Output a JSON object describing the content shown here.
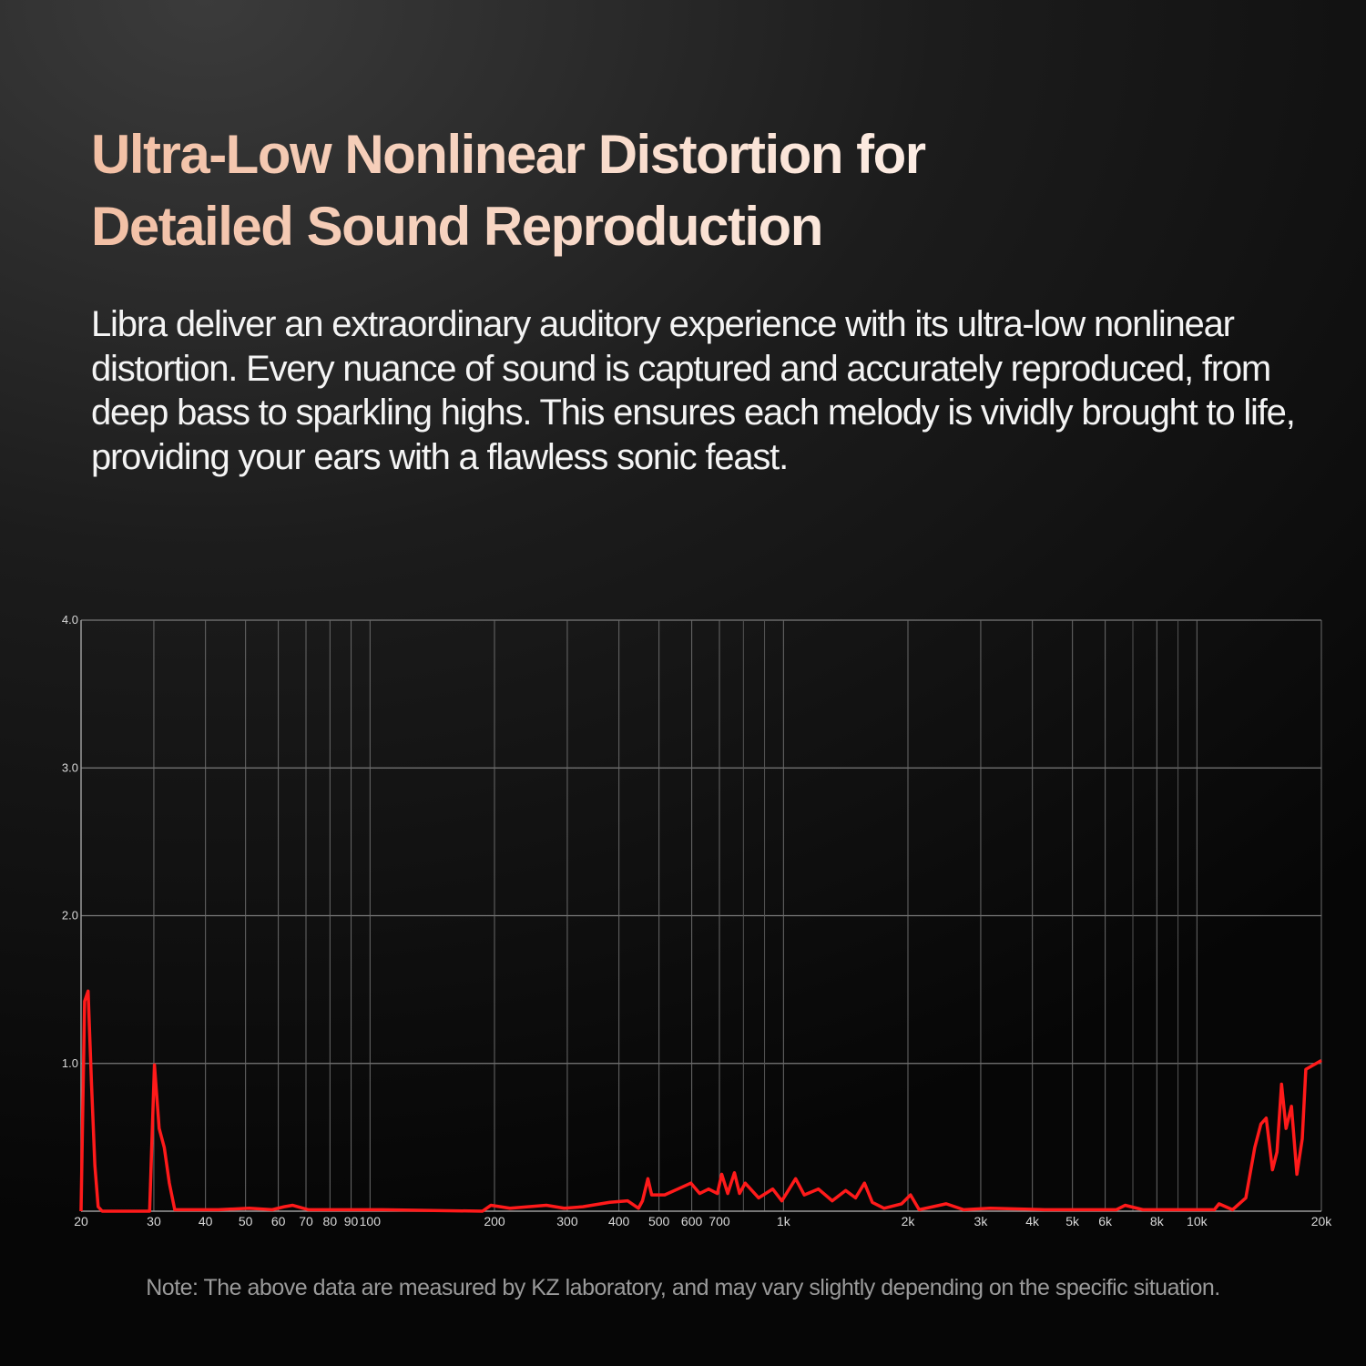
{
  "header": {
    "title_lines": [
      "Ultra-Low Nonlinear Distortion for",
      "Detailed Sound Reproduction"
    ],
    "description": "Libra deliver an extraordinary auditory experience with its ultra-low nonlinear distortion. Every nuance of sound is captured and accurately reproduced, from deep bass to sparkling highs. This ensures each melody is vividly brought to life, providing your ears with a flawless sonic feast."
  },
  "chart_data": {
    "type": "line",
    "xscale": "log",
    "grid": true,
    "xlim": [
      20,
      20000
    ],
    "ylim": [
      0,
      4
    ],
    "yticks": [
      {
        "value": 1,
        "label": "1.0"
      },
      {
        "value": 2,
        "label": "2.0"
      },
      {
        "value": 3,
        "label": "3.0"
      },
      {
        "value": 4,
        "label": "4.0"
      }
    ],
    "xticks": [
      20,
      30,
      40,
      50,
      60,
      70,
      80,
      90,
      100,
      200,
      300,
      400,
      500,
      600,
      700,
      {
        "value": 1000,
        "label": "1k"
      },
      {
        "value": 2000,
        "label": "2k"
      },
      {
        "value": 3000,
        "label": "3k"
      },
      {
        "value": 4000,
        "label": "4k"
      },
      {
        "value": 5000,
        "label": "5k"
      },
      {
        "value": 6000,
        "label": "6k"
      },
      {
        "value": 8000,
        "label": "8k"
      },
      {
        "value": 10000,
        "label": "10k"
      },
      {
        "value": 20000,
        "label": "20k"
      }
    ],
    "xminor": [
      800,
      900,
      7000,
      9000
    ],
    "series": [
      {
        "color": "#ff1a1a",
        "x": [
          20,
          20.4,
          20.8,
          21.2,
          21.6,
          22,
          22.5,
          29.3,
          30.1,
          30.9,
          31.8,
          32.7,
          33.7,
          43,
          51,
          58,
          62,
          65,
          71,
          107,
          187,
          196,
          218,
          267,
          295,
          327,
          380,
          420,
          446,
          456,
          470,
          480,
          516,
          555,
          597,
          627,
          659,
          692,
          709,
          733,
          761,
          783,
          808,
          871,
          942,
          991,
          1070,
          1123,
          1215,
          1312,
          1414,
          1494,
          1570,
          1640,
          1751,
          1931,
          2029,
          2129,
          2475,
          2728,
          3165,
          4278,
          6380,
          6703,
          7400,
          11020,
          11310,
          12190,
          13130,
          13800,
          14280,
          14710,
          15230,
          15620,
          16020,
          16430,
          16930,
          17450,
          17980,
          18340,
          20000
        ],
        "values": [
          0,
          1.42,
          1.49,
          0.86,
          0.31,
          0.03,
          0,
          0,
          0.99,
          0.56,
          0.43,
          0.19,
          0.01,
          0.01,
          0.02,
          0.01,
          0.03,
          0.04,
          0.01,
          0.01,
          0,
          0.04,
          0.02,
          0.04,
          0.02,
          0.03,
          0.06,
          0.07,
          0.02,
          0.07,
          0.22,
          0.11,
          0.11,
          0.15,
          0.19,
          0.12,
          0.15,
          0.12,
          0.25,
          0.12,
          0.26,
          0.12,
          0.19,
          0.09,
          0.15,
          0.07,
          0.22,
          0.11,
          0.15,
          0.07,
          0.14,
          0.09,
          0.19,
          0.06,
          0.02,
          0.05,
          0.11,
          0.01,
          0.05,
          0.01,
          0.02,
          0.01,
          0.01,
          0.04,
          0.01,
          0.01,
          0.05,
          0.01,
          0.09,
          0.43,
          0.59,
          0.63,
          0.28,
          0.4,
          0.86,
          0.56,
          0.71,
          0.25,
          0.49,
          0.96,
          1.02
        ]
      }
    ]
  },
  "footnote": "Note: The above data are measured by KZ laboratory, and may vary slightly depending on the specific situation."
}
